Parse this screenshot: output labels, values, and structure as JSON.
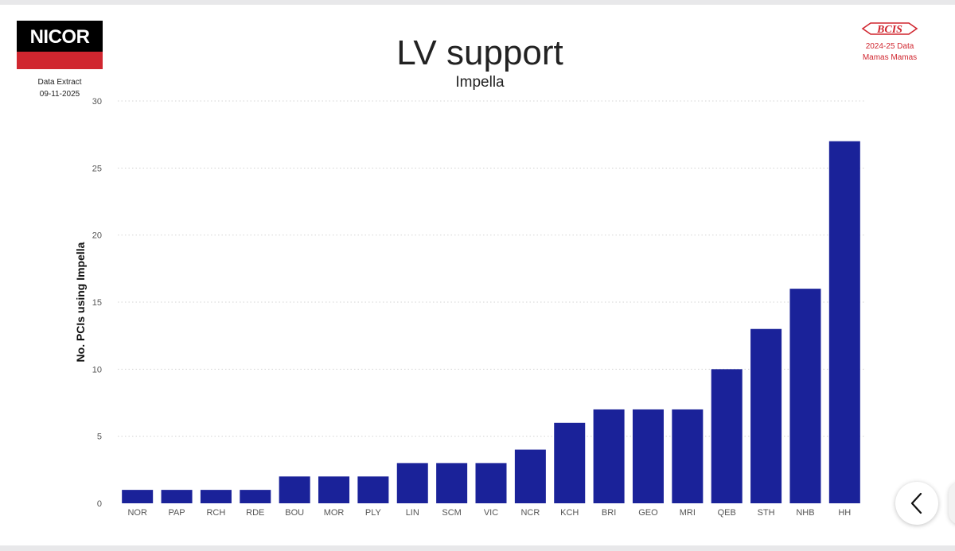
{
  "logo": {
    "text": "NICOR"
  },
  "extract": {
    "label": "Data Extract",
    "date": "09-11-2025"
  },
  "bcis": {
    "logo_text": "BCIS",
    "line1": "2024-25 Data",
    "line2": "Mamas Mamas"
  },
  "colors": {
    "bar": "#1a2299",
    "grid": "#d4d4d4",
    "brand_red": "#d0262f"
  },
  "chart_data": {
    "type": "bar",
    "title": "LV support",
    "subtitle": "Impella",
    "xlabel": "",
    "ylabel": "No. PCIs using Impella",
    "categories": [
      "NOR",
      "PAP",
      "RCH",
      "RDE",
      "BOU",
      "MOR",
      "PLY",
      "LIN",
      "SCM",
      "VIC",
      "NCR",
      "KCH",
      "BRI",
      "GEO",
      "MRI",
      "QEB",
      "STH",
      "NHB",
      "HH"
    ],
    "values": [
      1,
      1,
      1,
      1,
      2,
      2,
      2,
      3,
      3,
      3,
      4,
      6,
      7,
      7,
      7,
      10,
      13,
      16,
      27
    ],
    "ylim": [
      0,
      30
    ],
    "yticks": [
      0,
      5,
      10,
      15,
      20,
      25,
      30
    ],
    "grid": true
  },
  "nav": {
    "icon": "chevron-left-icon"
  }
}
